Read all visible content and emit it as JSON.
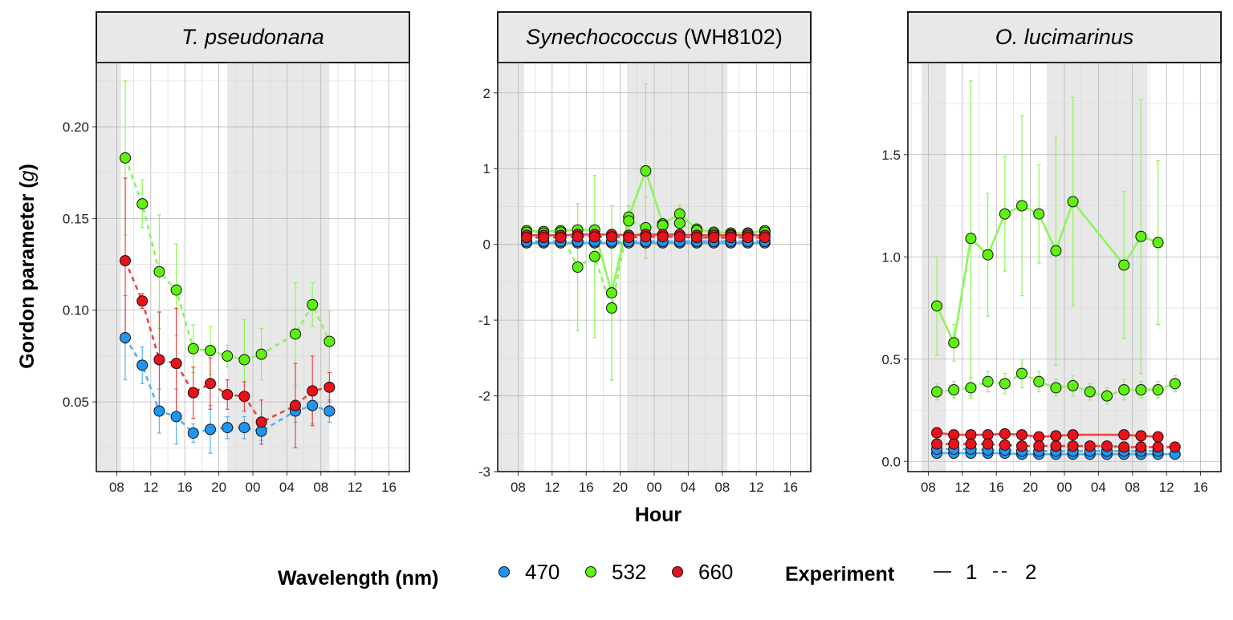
{
  "figure": {
    "ylabel_prefix": "Gordon parameter (",
    "ylabel_symbol": "g",
    "ylabel_suffix": ")",
    "xlabel": "Hour",
    "legend_wavelength_title": "Wavelength (nm)",
    "legend_experiment_title": "Experiment",
    "colors": {
      "470": "#1f95f2",
      "532": "#5df20f",
      "660": "#e8121a"
    },
    "line_colors": {
      "470": "#52b3f7",
      "532": "#8ef55a",
      "660": "#ee4444"
    },
    "night_shading": "#e8e8e8",
    "grid_color": "#bdbdbd"
  },
  "legend": {
    "wavelength": [
      {
        "key": "470",
        "label": "470"
      },
      {
        "key": "532",
        "label": "532"
      },
      {
        "key": "660",
        "label": "660"
      }
    ],
    "experiment": [
      {
        "key": "1",
        "label": "1",
        "dash": "solid"
      },
      {
        "key": "2",
        "label": "2",
        "dash": "dashed"
      }
    ]
  },
  "chart_data": [
    {
      "type": "scatter",
      "title_italic": "T. pseudonana",
      "title_plain": "",
      "x_unit": "hours since 00 on day 1",
      "x_tick_values": [
        8,
        12,
        16,
        20,
        24,
        28,
        32,
        36,
        40
      ],
      "x_tick_labels": [
        "08",
        "12",
        "16",
        "20",
        "00",
        "04",
        "08",
        "12",
        "16"
      ],
      "xlim": [
        5.6,
        42.4
      ],
      "y_ticks": [
        0.05,
        0.1,
        0.15,
        0.2
      ],
      "y_tick_labels": [
        "0.05",
        "0.10",
        "0.15",
        "0.20"
      ],
      "ylim": [
        0.012,
        0.235
      ],
      "night_bands": [
        [
          5.6,
          8.5
        ],
        [
          21,
          33
        ]
      ],
      "grid": true,
      "series": [
        {
          "wavelength": "470",
          "experiment": "2",
          "x": [
            9,
            11,
            13,
            15,
            17,
            19,
            21,
            23,
            25,
            29,
            31,
            33
          ],
          "y": [
            0.085,
            0.07,
            0.045,
            0.042,
            0.033,
            0.035,
            0.036,
            0.036,
            0.034,
            0.045,
            0.048,
            0.045
          ],
          "err": [
            0.023,
            0.01,
            0.012,
            0.015,
            0.005,
            0.013,
            0.006,
            0.006,
            0.005,
            0.006,
            0.01,
            0.006
          ]
        },
        {
          "wavelength": "532",
          "experiment": "2",
          "x": [
            9,
            11,
            13,
            15,
            17,
            19,
            21,
            23,
            25,
            29,
            31,
            33
          ],
          "y": [
            0.183,
            0.158,
            0.121,
            0.111,
            0.079,
            0.078,
            0.075,
            0.073,
            0.076,
            0.087,
            0.103,
            0.083
          ],
          "err": [
            0.042,
            0.013,
            0.031,
            0.025,
            0.013,
            0.013,
            0.006,
            0.022,
            0.014,
            0.028,
            0.012,
            0.017
          ]
        },
        {
          "wavelength": "660",
          "experiment": "2",
          "x": [
            9,
            11,
            13,
            15,
            17,
            19,
            21,
            23,
            25,
            29,
            31,
            33
          ],
          "y": [
            0.127,
            0.105,
            0.073,
            0.071,
            0.055,
            0.06,
            0.054,
            0.053,
            0.039,
            0.048,
            0.056,
            0.058
          ],
          "err": [
            0.045,
            0.004,
            0.026,
            0.03,
            0.014,
            0.014,
            0.008,
            0.008,
            0.012,
            0.023,
            0.019,
            0.008
          ]
        }
      ]
    },
    {
      "type": "scatter",
      "title_italic": "Synechococcus",
      "title_plain": "(WH8102)",
      "x_unit": "hours since 00 on day 1",
      "x_tick_values": [
        8,
        12,
        16,
        20,
        24,
        28,
        32,
        36,
        40
      ],
      "x_tick_labels": [
        "08",
        "12",
        "16",
        "20",
        "00",
        "04",
        "08",
        "12",
        "16"
      ],
      "xlim": [
        5.6,
        42.4
      ],
      "y_ticks": [
        -3,
        -2,
        -1,
        0,
        1,
        2
      ],
      "y_tick_labels": [
        "-3",
        "-2",
        "-1",
        "0",
        "1",
        "2"
      ],
      "ylim": [
        -3.0,
        2.4
      ],
      "night_bands": [
        [
          5.6,
          8.7
        ],
        [
          20.8,
          32.6
        ]
      ],
      "grid": true,
      "series": [
        {
          "wavelength": "470",
          "experiment": "1",
          "x": [
            9,
            11,
            13,
            15,
            17,
            19,
            21,
            23,
            25,
            27,
            29,
            31,
            33,
            35,
            37
          ],
          "y": [
            0.02,
            0.02,
            0.02,
            0.02,
            0.02,
            0.02,
            0.02,
            0.02,
            0.02,
            0.02,
            0.02,
            0.02,
            0.02,
            0.02,
            0.02
          ],
          "err": [
            0.02,
            0.02,
            0.02,
            0.02,
            0.02,
            0.02,
            0.02,
            0.02,
            0.02,
            0.02,
            0.02,
            0.02,
            0.02,
            0.02,
            0.02
          ]
        },
        {
          "wavelength": "470",
          "experiment": "2",
          "x": [
            9,
            11,
            13,
            15,
            17,
            19,
            21,
            23,
            25,
            27,
            29,
            31,
            33,
            35,
            37
          ],
          "y": [
            0.04,
            0.04,
            0.04,
            0.04,
            0.04,
            0.04,
            0.04,
            0.04,
            0.04,
            0.04,
            0.04,
            0.04,
            0.04,
            0.04,
            0.04
          ],
          "err": [
            0.02,
            0.02,
            0.02,
            0.02,
            0.02,
            0.02,
            0.02,
            0.02,
            0.02,
            0.02,
            0.02,
            0.02,
            0.02,
            0.02,
            0.02
          ]
        },
        {
          "wavelength": "532",
          "experiment": "1",
          "x": [
            9,
            11,
            13,
            15,
            17,
            19,
            21,
            23,
            25,
            27,
            29,
            31,
            33,
            35,
            37
          ],
          "y": [
            0.18,
            0.17,
            0.18,
            0.19,
            0.19,
            -0.64,
            0.36,
            0.97,
            0.27,
            0.4,
            0.2,
            0.16,
            0.15,
            0.15,
            0.18
          ],
          "err": [
            0.04,
            0.04,
            0.05,
            0.06,
            0.06,
            1.15,
            0.15,
            1.15,
            0.08,
            0.12,
            0.06,
            0.06,
            0.05,
            0.04,
            0.04
          ]
        },
        {
          "wavelength": "532",
          "experiment": "2",
          "x": [
            9,
            11,
            13,
            15,
            17,
            19,
            21,
            23,
            25,
            27,
            29,
            31,
            33,
            35,
            37
          ],
          "y": [
            0.16,
            0.15,
            0.16,
            -0.3,
            -0.16,
            -0.84,
            0.31,
            0.22,
            0.25,
            0.28,
            0.18,
            0.14,
            0.13,
            0.14,
            0.16
          ],
          "err": [
            0.04,
            0.04,
            0.05,
            0.84,
            1.07,
            0.95,
            0.2,
            0.4,
            0.08,
            0.2,
            0.1,
            0.06,
            0.05,
            0.05,
            0.05
          ]
        },
        {
          "wavelength": "660",
          "experiment": "1",
          "x": [
            9,
            11,
            13,
            15,
            17,
            19,
            21,
            23,
            25,
            27,
            29,
            31,
            33,
            35,
            37
          ],
          "y": [
            0.12,
            0.12,
            0.12,
            0.13,
            0.13,
            0.13,
            0.12,
            0.13,
            0.13,
            0.13,
            0.12,
            0.12,
            0.12,
            0.12,
            0.12
          ],
          "err": [
            0.03,
            0.03,
            0.03,
            0.03,
            0.03,
            0.03,
            0.03,
            0.03,
            0.03,
            0.03,
            0.03,
            0.03,
            0.03,
            0.03,
            0.03
          ]
        },
        {
          "wavelength": "660",
          "experiment": "2",
          "x": [
            9,
            11,
            13,
            15,
            17,
            19,
            21,
            23,
            25,
            27,
            29,
            31,
            33,
            35,
            37
          ],
          "y": [
            0.09,
            0.09,
            0.09,
            0.1,
            0.1,
            0.1,
            0.09,
            0.1,
            0.1,
            0.1,
            0.09,
            0.09,
            0.09,
            0.09,
            0.09
          ],
          "err": [
            0.03,
            0.03,
            0.03,
            0.03,
            0.03,
            0.03,
            0.03,
            0.03,
            0.03,
            0.03,
            0.03,
            0.03,
            0.03,
            0.03,
            0.03
          ]
        }
      ]
    },
    {
      "type": "scatter",
      "title_italic": "O. lucimarinus",
      "title_plain": "",
      "x_unit": "hours since 00 on day 1",
      "x_tick_values": [
        8,
        12,
        16,
        20,
        24,
        28,
        32,
        36,
        40
      ],
      "x_tick_labels": [
        "08",
        "12",
        "16",
        "20",
        "00",
        "04",
        "08",
        "12",
        "16"
      ],
      "xlim": [
        5.6,
        42.4
      ],
      "y_ticks": [
        0.0,
        0.5,
        1.0,
        1.5
      ],
      "y_tick_labels": [
        "0.0",
        "0.5",
        "1.0",
        "1.5"
      ],
      "ylim": [
        -0.05,
        1.95
      ],
      "night_bands": [
        [
          7.2,
          10.0
        ],
        [
          22.0,
          33.8
        ]
      ],
      "grid": true,
      "series": [
        {
          "wavelength": "470",
          "experiment": "1",
          "x": [
            9,
            11,
            13,
            15,
            17,
            19,
            21,
            23,
            25,
            27,
            29,
            31,
            33,
            35,
            37
          ],
          "y": [
            0.04,
            0.04,
            0.04,
            0.04,
            0.04,
            0.035,
            0.035,
            0.035,
            0.035,
            0.035,
            0.035,
            0.035,
            0.035,
            0.035,
            0.035
          ],
          "err": [
            0.01,
            0.01,
            0.01,
            0.01,
            0.01,
            0.01,
            0.01,
            0.01,
            0.01,
            0.01,
            0.01,
            0.01,
            0.01,
            0.01,
            0.01
          ]
        },
        {
          "wavelength": "470",
          "experiment": "2",
          "x": [
            9,
            11,
            13,
            15,
            17,
            19,
            21,
            23,
            25,
            27,
            29,
            31,
            33,
            35
          ],
          "y": [
            0.06,
            0.06,
            0.06,
            0.055,
            0.055,
            0.05,
            0.05,
            0.05,
            0.05,
            0.05,
            0.05,
            0.05,
            0.05,
            0.05
          ],
          "err": [
            0.01,
            0.01,
            0.01,
            0.01,
            0.01,
            0.01,
            0.01,
            0.01,
            0.01,
            0.01,
            0.01,
            0.01,
            0.01,
            0.01
          ]
        },
        {
          "wavelength": "532",
          "experiment": "1",
          "x": [
            9,
            11,
            13,
            15,
            17,
            19,
            21,
            23,
            25,
            31,
            33,
            35
          ],
          "y": [
            0.76,
            0.58,
            1.09,
            1.01,
            1.21,
            1.25,
            1.21,
            1.03,
            1.27,
            0.96,
            1.1,
            1.07
          ],
          "err": [
            0.24,
            0.09,
            0.77,
            0.3,
            0.28,
            0.44,
            0.24,
            0.56,
            0.51,
            0.36,
            0.67,
            0.4
          ]
        },
        {
          "wavelength": "532",
          "experiment": "2",
          "x": [
            9,
            11,
            13,
            15,
            17,
            19,
            21,
            23,
            25,
            27,
            29,
            31,
            33,
            35,
            37
          ],
          "y": [
            0.34,
            0.35,
            0.36,
            0.39,
            0.38,
            0.43,
            0.39,
            0.36,
            0.37,
            0.34,
            0.32,
            0.35,
            0.35,
            0.35,
            0.38
          ],
          "err": [
            0.04,
            0.04,
            0.05,
            0.05,
            0.05,
            0.07,
            0.05,
            0.04,
            0.05,
            0.04,
            0.04,
            0.05,
            0.04,
            0.04,
            0.04
          ]
        },
        {
          "wavelength": "660",
          "experiment": "1",
          "x": [
            9,
            11,
            13,
            15,
            17,
            19,
            21,
            23,
            25,
            31,
            33,
            35
          ],
          "y": [
            0.14,
            0.13,
            0.13,
            0.13,
            0.135,
            0.13,
            0.12,
            0.125,
            0.13,
            0.13,
            0.125,
            0.12
          ],
          "err": [
            0.02,
            0.02,
            0.02,
            0.02,
            0.02,
            0.02,
            0.02,
            0.02,
            0.02,
            0.02,
            0.02,
            0.02
          ]
        },
        {
          "wavelength": "660",
          "experiment": "2",
          "x": [
            9,
            11,
            13,
            15,
            17,
            19,
            21,
            23,
            25,
            27,
            29,
            31,
            33,
            35,
            37
          ],
          "y": [
            0.085,
            0.085,
            0.085,
            0.085,
            0.08,
            0.075,
            0.075,
            0.075,
            0.075,
            0.075,
            0.075,
            0.07,
            0.07,
            0.07,
            0.07
          ],
          "err": [
            0.015,
            0.015,
            0.015,
            0.015,
            0.015,
            0.015,
            0.015,
            0.015,
            0.015,
            0.015,
            0.015,
            0.015,
            0.015,
            0.015,
            0.015
          ]
        }
      ]
    }
  ]
}
